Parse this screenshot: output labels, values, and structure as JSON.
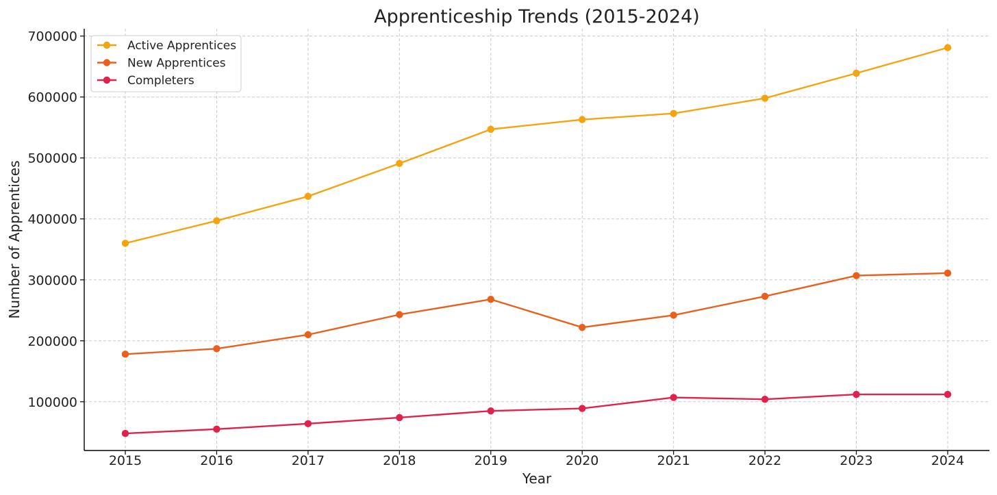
{
  "chart_data": {
    "type": "line",
    "title": "Apprenticeship Trends (2015-2024)",
    "xlabel": "Year",
    "ylabel": "Number of Apprentices",
    "categories": [
      "2015",
      "2016",
      "2017",
      "2018",
      "2019",
      "2020",
      "2021",
      "2022",
      "2023",
      "2024"
    ],
    "ylim": [
      20000,
      712000
    ],
    "yticks": [
      "100000",
      "200000",
      "300000",
      "400000",
      "500000",
      "600000",
      "700000"
    ],
    "grid": true,
    "legend_position": "top-left",
    "series": [
      {
        "name": "Active Apprentices",
        "color": "#f5a30f",
        "values": [
          360000,
          397000,
          437000,
          491000,
          547000,
          563000,
          573000,
          598000,
          639000,
          681000
        ]
      },
      {
        "name": "New Apprentices",
        "color": "#e8601c",
        "values": [
          178000,
          187000,
          210000,
          243000,
          268000,
          222000,
          242000,
          273000,
          307000,
          311000
        ]
      },
      {
        "name": "Completers",
        "color": "#e0224b",
        "values": [
          48000,
          55000,
          64000,
          74000,
          85000,
          89000,
          107000,
          104000,
          112000,
          112000
        ]
      }
    ]
  }
}
